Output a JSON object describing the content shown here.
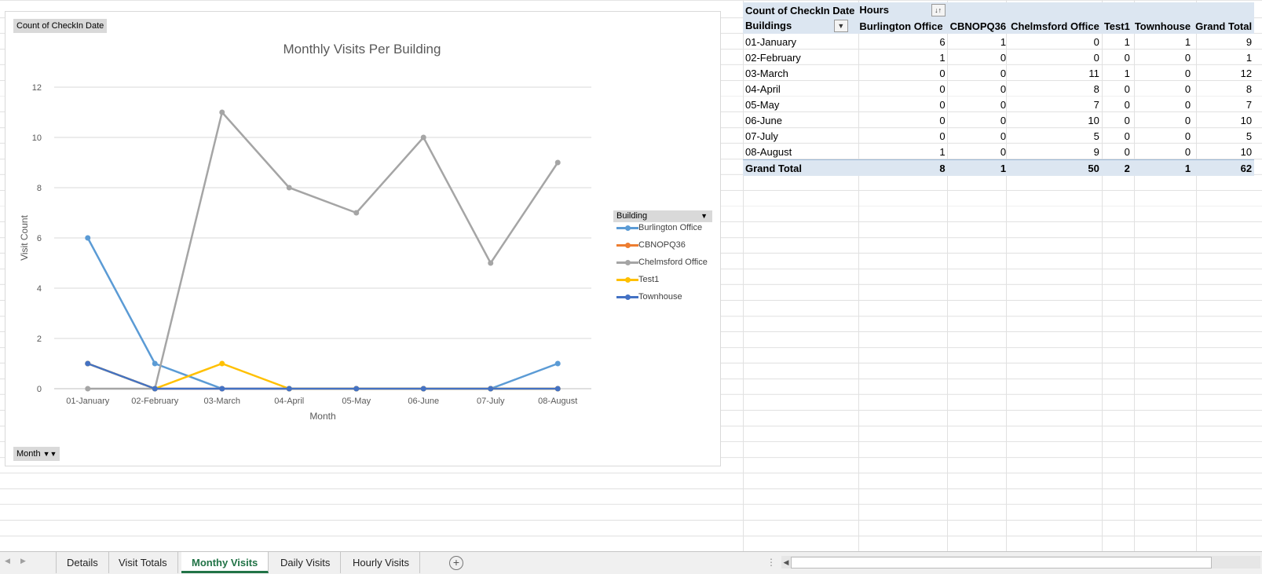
{
  "chart": {
    "value_field_button": "Count of CheckIn Date",
    "axis_field_button": "Month",
    "legend_field_button": "Building",
    "colors": {
      "Burlington Office": "#5b9bd5",
      "CBNOPQ36": "#ed7d31",
      "Chelmsford Office": "#a5a5a5",
      "Test1": "#ffc000",
      "Townhouse": "#4472c4"
    }
  },
  "chart_data": {
    "type": "line",
    "title": "Monthly Visits Per Building",
    "xlabel": "Month",
    "ylabel": "Visit Count",
    "ylim": [
      0,
      12
    ],
    "yticks": [
      0,
      2,
      4,
      6,
      8,
      10,
      12
    ],
    "grid": true,
    "legend_position": "right",
    "categories": [
      "01-January",
      "02-February",
      "03-March",
      "04-April",
      "05-May",
      "06-June",
      "07-July",
      "08-August"
    ],
    "series": [
      {
        "name": "Burlington Office",
        "values": [
          6,
          1,
          0,
          0,
          0,
          0,
          0,
          1
        ]
      },
      {
        "name": "CBNOPQ36",
        "values": [
          1,
          0,
          0,
          0,
          0,
          0,
          0,
          0
        ]
      },
      {
        "name": "Chelmsford Office",
        "values": [
          0,
          0,
          11,
          8,
          7,
          10,
          5,
          9
        ]
      },
      {
        "name": "Test1",
        "values": [
          1,
          0,
          1,
          0,
          0,
          0,
          0,
          0
        ]
      },
      {
        "name": "Townhouse",
        "values": [
          1,
          0,
          0,
          0,
          0,
          0,
          0,
          0
        ]
      }
    ]
  },
  "pivot": {
    "value_label": "Count of CheckIn Date",
    "col_field": "Hours",
    "row_field": "Buildings",
    "columns": [
      "Burlington Office",
      "CBNOPQ36",
      "Chelmsford Office",
      "Test1",
      "Townhouse",
      "Grand Total"
    ],
    "rows": [
      {
        "label": "01-January",
        "values": [
          6,
          1,
          0,
          1,
          1,
          9
        ]
      },
      {
        "label": "02-February",
        "values": [
          1,
          0,
          0,
          0,
          0,
          1
        ]
      },
      {
        "label": "03-March",
        "values": [
          0,
          0,
          11,
          1,
          0,
          12
        ]
      },
      {
        "label": "04-April",
        "values": [
          0,
          0,
          8,
          0,
          0,
          8
        ]
      },
      {
        "label": "05-May",
        "values": [
          0,
          0,
          7,
          0,
          0,
          7
        ]
      },
      {
        "label": "06-June",
        "values": [
          0,
          0,
          10,
          0,
          0,
          10
        ]
      },
      {
        "label": "07-July",
        "values": [
          0,
          0,
          5,
          0,
          0,
          5
        ]
      },
      {
        "label": "08-August",
        "values": [
          1,
          0,
          9,
          0,
          0,
          10
        ]
      }
    ],
    "total": {
      "label": "Grand Total",
      "values": [
        8,
        1,
        50,
        2,
        1,
        62
      ]
    }
  },
  "sheets": {
    "tabs": [
      "Details",
      "Visit Totals",
      "Monthy Visits",
      "Daily Visits",
      "Hourly Visits"
    ],
    "active": "Monthy Visits",
    "add_label": "+"
  }
}
